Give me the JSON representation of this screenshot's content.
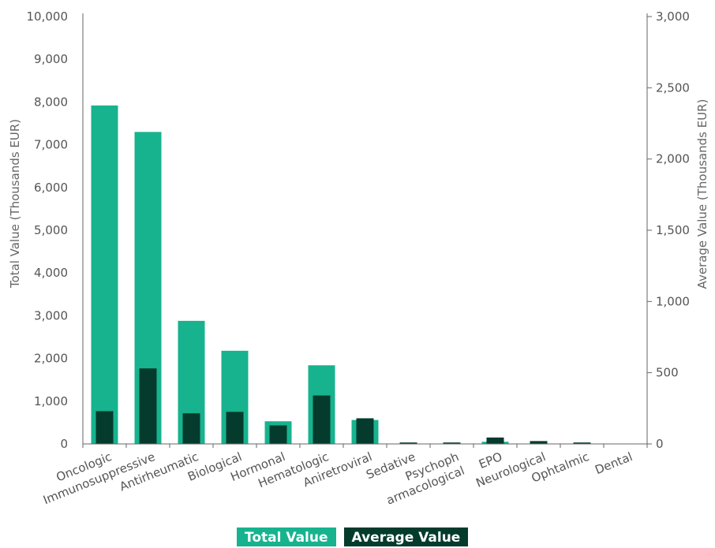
{
  "colors": {
    "total": "#17b38e",
    "average": "#053b2c",
    "axis": "#666666",
    "text": "#555555"
  },
  "chart_data": {
    "type": "bar",
    "categories": [
      "Oncologic",
      "Immunosuppressive",
      "Antirheumatic",
      "Biological",
      "Hormonal",
      "Hematologic",
      "Aniretroviral",
      "Sedative",
      "Psychoph armacological",
      "EPO",
      "Neurological",
      "Ophtalmic",
      "Dental"
    ],
    "series": [
      {
        "name": "Total Value",
        "axis": "left",
        "values": [
          7920,
          7300,
          2880,
          2180,
          530,
          1840,
          560,
          5,
          5,
          50,
          5,
          5,
          0
        ]
      },
      {
        "name": "Average Value",
        "axis": "right",
        "values": [
          230,
          530,
          215,
          225,
          130,
          340,
          180,
          10,
          10,
          45,
          20,
          10,
          0
        ]
      }
    ],
    "ylabel": "Total Value (Thousands EUR)",
    "y2label": "Average Value (Thousands EUR)",
    "ylim": [
      0,
      10000
    ],
    "y2lim": [
      0,
      3000
    ],
    "yticks": [
      "0",
      "1,000",
      "2,000",
      "3,000",
      "4,000",
      "5,000",
      "6,000",
      "7,000",
      "8,000",
      "9,000",
      "10,000"
    ],
    "y2ticks": [
      "0",
      "500",
      "1,000",
      "1,500",
      "2,000",
      "2,500",
      "3,000"
    ],
    "grid": false,
    "legend": "bottom-center"
  }
}
